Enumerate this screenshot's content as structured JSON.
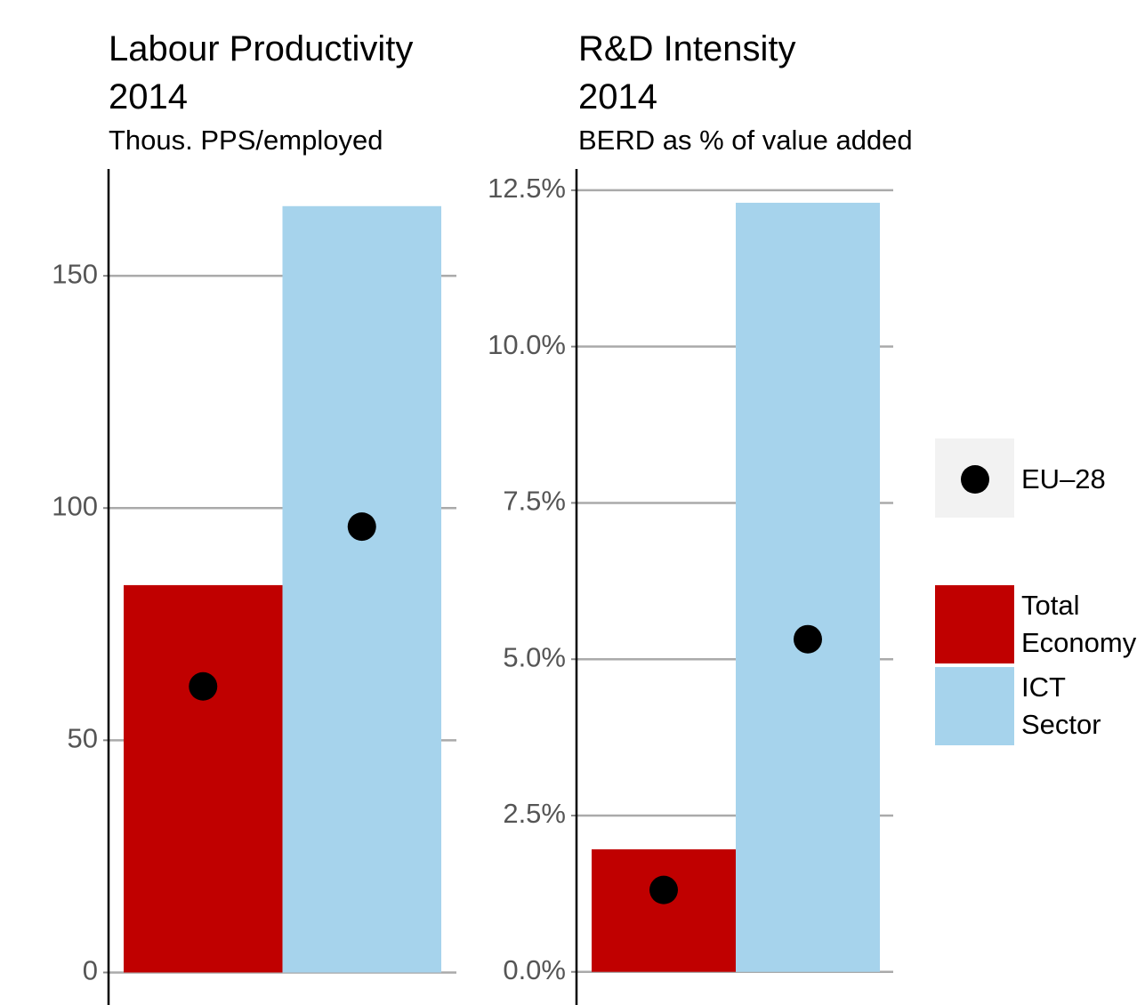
{
  "chart_data": [
    {
      "type": "bar",
      "title": "Labour Productivity 2014",
      "subtitle": "Thous. PPS/employed",
      "values": [
        83.4,
        165
      ],
      "point_values": [
        61.6,
        96
      ],
      "ylim": [
        -7,
        173
      ],
      "yticks": [
        0,
        50,
        100,
        150
      ],
      "grid": true
    },
    {
      "type": "bar",
      "title": "R&D Intensity 2014",
      "subtitle": "BERD as % of value added",
      "values": [
        1.96,
        12.3
      ],
      "point_values": [
        1.31,
        5.32
      ],
      "ylim": [
        -0.53,
        12.84
      ],
      "yticks": [
        {
          "value": 0,
          "label": "0.0%"
        },
        {
          "value": 2.5,
          "label": "2.5%"
        },
        {
          "value": 5,
          "label": "5.0%"
        },
        {
          "value": 7.5,
          "label": "7.5%"
        },
        {
          "value": 10,
          "label": "10.0%"
        },
        {
          "value": 12.5,
          "label": "12.5%"
        }
      ],
      "grid": true
    }
  ],
  "legend": {
    "categories": [
      "Total Economy",
      "ICT Sector"
    ],
    "colors": [
      "#c00000",
      "#a6d3ec"
    ],
    "point_label": "EU–28",
    "point_color": "#000000"
  }
}
